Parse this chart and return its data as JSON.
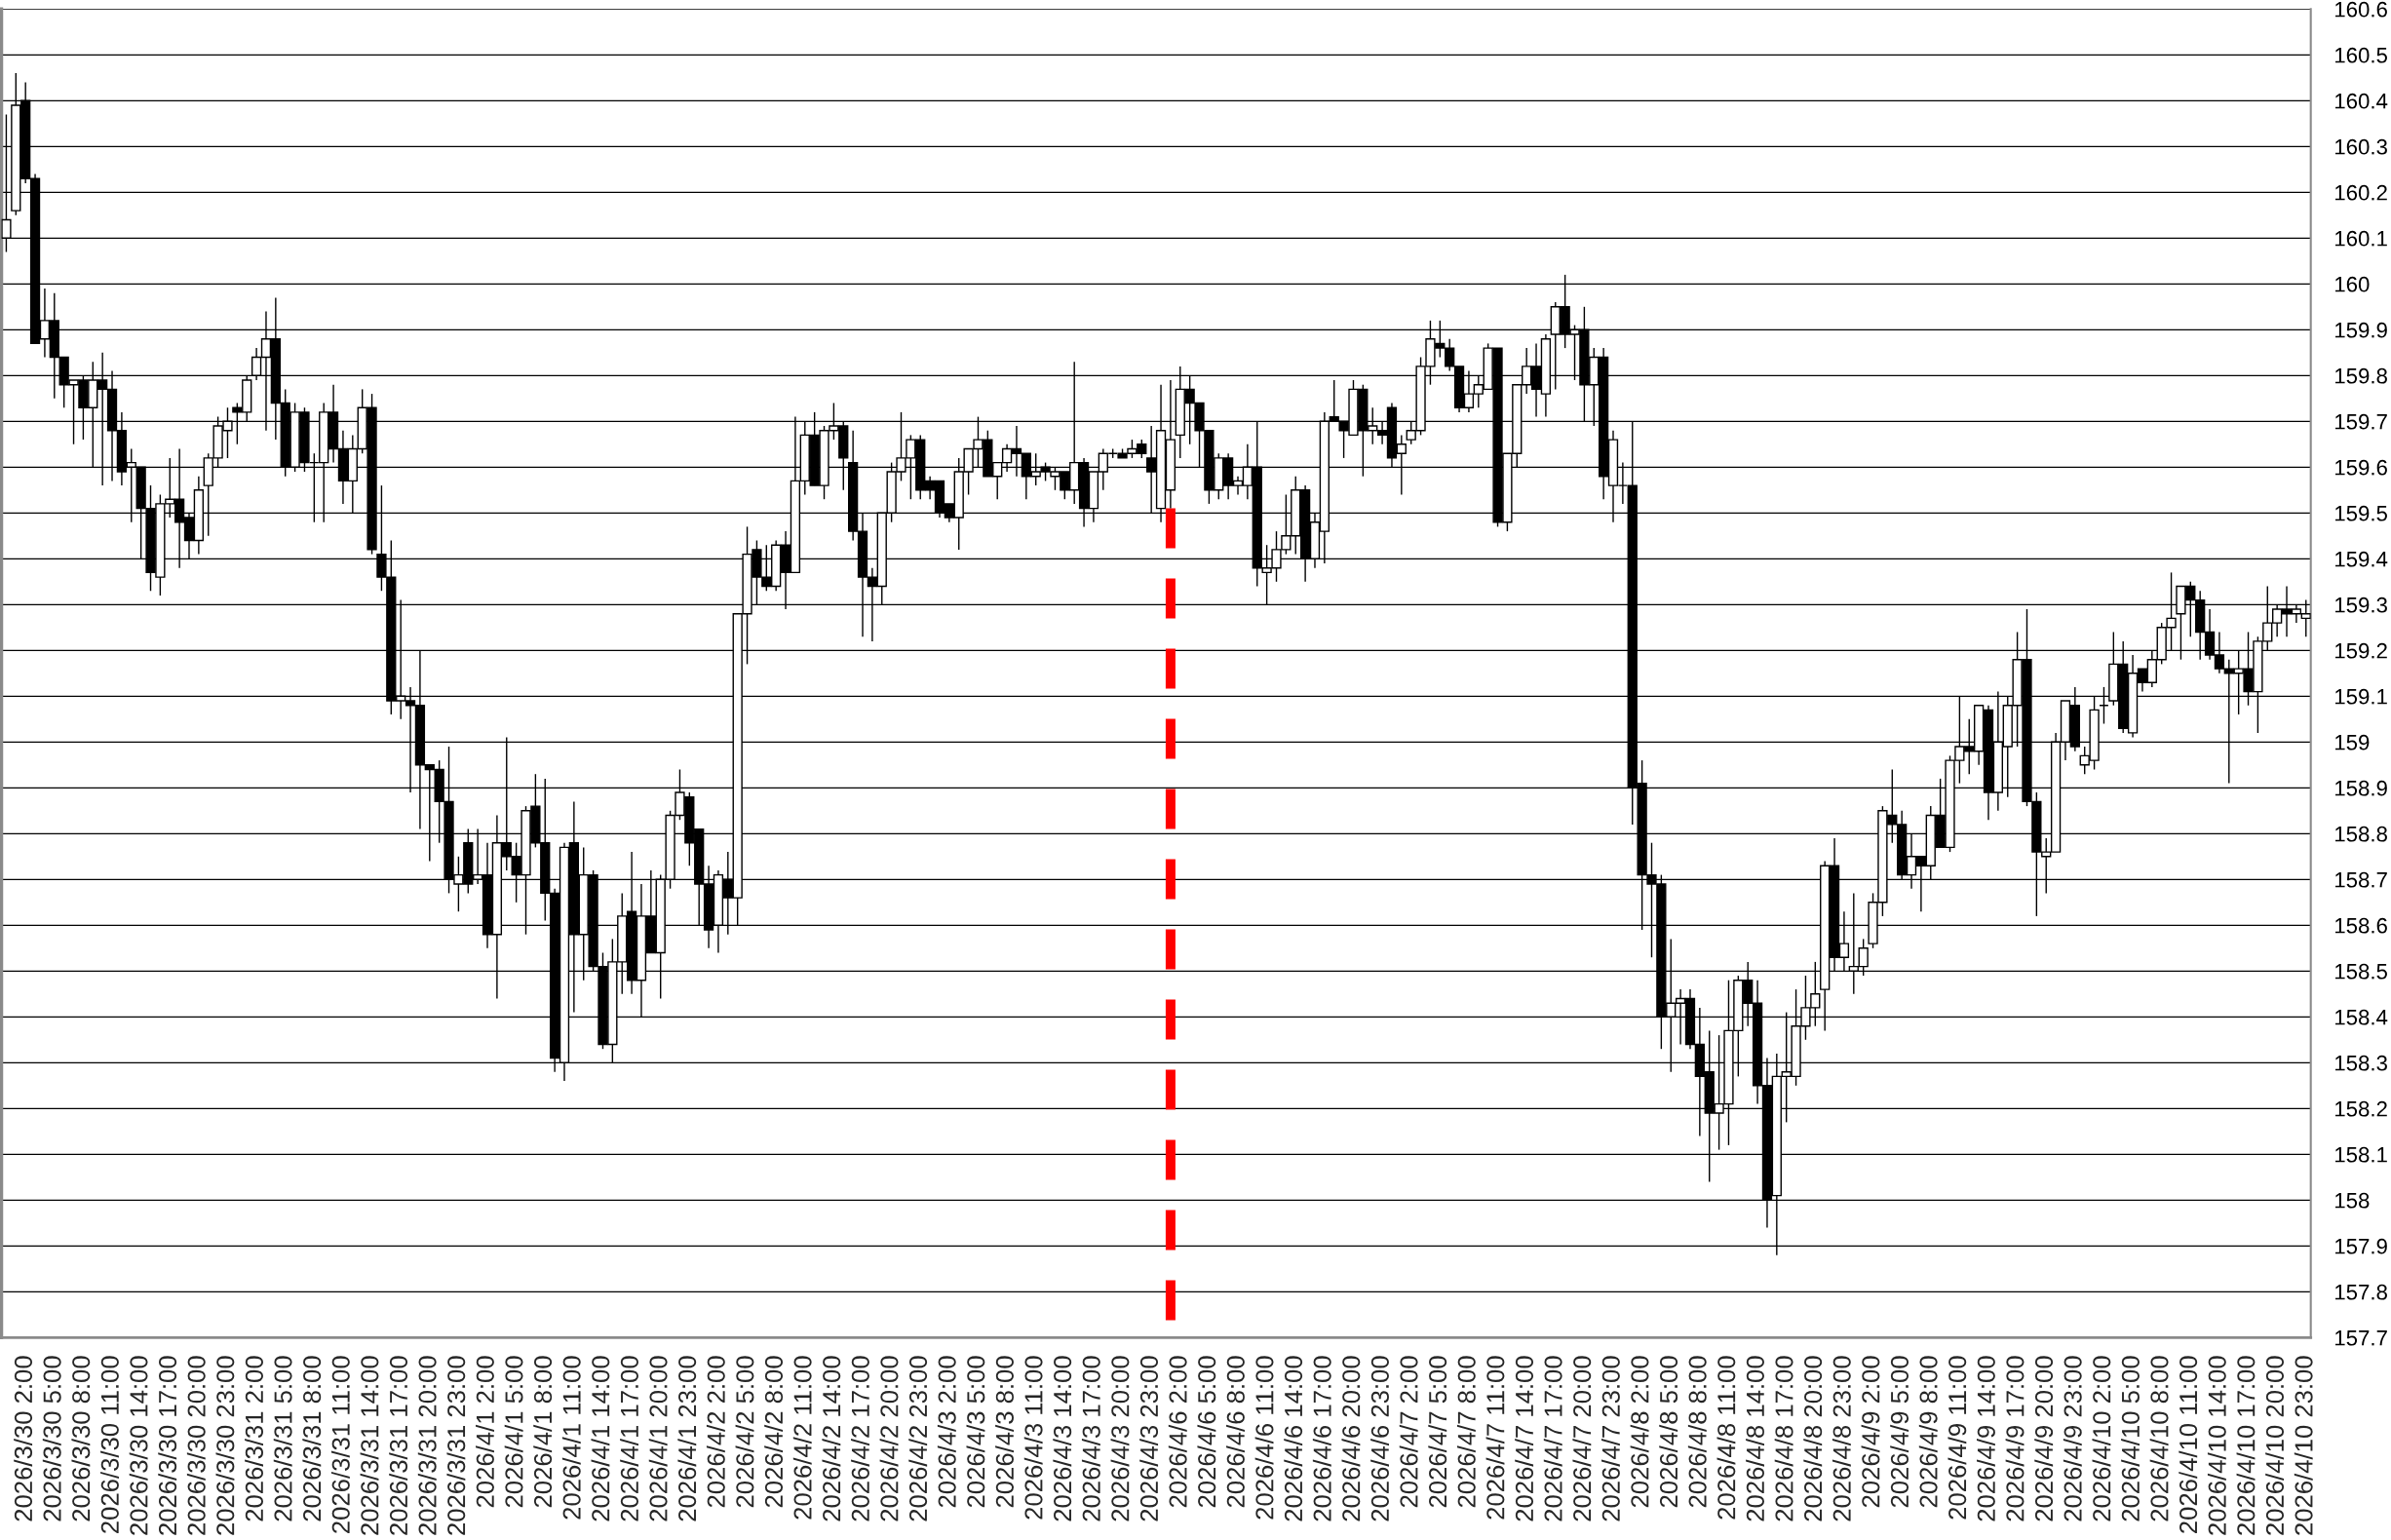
{
  "chart_data": {
    "type": "candlestick",
    "categories": [
      null,
      null,
      "2026/3/30 2:00",
      null,
      null,
      "2026/3/30 5:00",
      null,
      null,
      "2026/3/30 8:00",
      null,
      null,
      "2026/3/30 11:00",
      null,
      null,
      "2026/3/30 14:00",
      null,
      null,
      "2026/3/30 17:00",
      null,
      null,
      "2026/3/30 20:00",
      null,
      null,
      "2026/3/30 23:00",
      null,
      null,
      "2026/3/31 2:00",
      null,
      null,
      "2026/3/31 5:00",
      null,
      null,
      "2026/3/31 8:00",
      null,
      null,
      "2026/3/31 11:00",
      null,
      null,
      "2026/3/31 14:00",
      null,
      null,
      "2026/3/31 17:00",
      null,
      null,
      "2026/3/31 20:00",
      null,
      null,
      "2026/3/31 23:00",
      null,
      null,
      "2026/4/1 2:00",
      null,
      null,
      "2026/4/1 5:00",
      null,
      null,
      "2026/4/1 8:00",
      null,
      null,
      "2026/4/1 11:00",
      null,
      null,
      "2026/4/1 14:00",
      null,
      null,
      "2026/4/1 17:00",
      null,
      null,
      "2026/4/1 20:00",
      null,
      null,
      "2026/4/1 23:00",
      null,
      null,
      "2026/4/2 2:00",
      null,
      null,
      "2026/4/2 5:00",
      null,
      null,
      "2026/4/2 8:00",
      null,
      null,
      "2026/4/2 11:00",
      null,
      null,
      "2026/4/2 14:00",
      null,
      null,
      "2026/4/2 17:00",
      null,
      null,
      "2026/4/2 20:00",
      null,
      null,
      "2026/4/2 23:00",
      null,
      null,
      "2026/4/3 2:00",
      null,
      null,
      "2026/4/3 5:00",
      null,
      null,
      "2026/4/3 8:00",
      null,
      null,
      "2026/4/3 11:00",
      null,
      null,
      "2026/4/3 14:00",
      null,
      null,
      "2026/4/3 17:00",
      null,
      null,
      "2026/4/3 20:00",
      null,
      null,
      "2026/4/3 23:00",
      null,
      null,
      "2026/4/6 2:00",
      null,
      null,
      "2026/4/6 5:00",
      null,
      null,
      "2026/4/6 8:00",
      null,
      null,
      "2026/4/6 11:00",
      null,
      null,
      "2026/4/6 14:00",
      null,
      null,
      "2026/4/6 17:00",
      null,
      null,
      "2026/4/6 20:00",
      null,
      null,
      "2026/4/6 23:00",
      null,
      null,
      "2026/4/7 2:00",
      null,
      null,
      "2026/4/7 5:00",
      null,
      null,
      "2026/4/7 8:00",
      null,
      null,
      "2026/4/7 11:00",
      null,
      null,
      "2026/4/7 14:00",
      null,
      null,
      "2026/4/7 17:00",
      null,
      null,
      "2026/4/7 20:00",
      null,
      null,
      "2026/4/7 23:00",
      null,
      null,
      "2026/4/8 2:00",
      null,
      null,
      "2026/4/8 5:00",
      null,
      null,
      "2026/4/8 8:00",
      null,
      null,
      "2026/4/8 11:00",
      null,
      null,
      "2026/4/8 14:00",
      null,
      null,
      "2026/4/8 17:00",
      null,
      null,
      "2026/4/8 20:00",
      null,
      null,
      "2026/4/8 23:00",
      null,
      null,
      "2026/4/9 2:00",
      null,
      null,
      "2026/4/9 5:00",
      null,
      null,
      "2026/4/9 8:00",
      null,
      null,
      "2026/4/9 11:00",
      null,
      null,
      "2026/4/9 14:00",
      null,
      null,
      "2026/4/9 17:00",
      null,
      null,
      "2026/4/9 20:00",
      null,
      null,
      "2026/4/9 23:00",
      null,
      null,
      "2026/4/10 2:00",
      null,
      null,
      "2026/4/10 5:00",
      null,
      null,
      "2026/4/10 8:00",
      null,
      null,
      "2026/4/10 11:00",
      null,
      null,
      "2026/4/10 14:00",
      null,
      null,
      "2026/4/10 17:00",
      null,
      null,
      "2026/4/10 20:00",
      null,
      null,
      "2026/4/10 23:00"
    ],
    "ohlc": [
      [
        160.1,
        160.37,
        160.07,
        160.14
      ],
      [
        160.16,
        160.46,
        160.15,
        160.39
      ],
      [
        160.4,
        160.44,
        160.22,
        160.23
      ],
      [
        160.23,
        160.24,
        159.87,
        159.87
      ],
      [
        159.88,
        159.99,
        159.84,
        159.92
      ],
      [
        159.92,
        159.98,
        159.75,
        159.84
      ],
      [
        159.84,
        159.84,
        159.73,
        159.78
      ],
      [
        159.78,
        159.79,
        159.65,
        159.79
      ],
      [
        159.79,
        159.8,
        159.66,
        159.73
      ],
      [
        159.73,
        159.83,
        159.6,
        159.79
      ],
      [
        159.79,
        159.85,
        159.56,
        159.77
      ],
      [
        159.77,
        159.81,
        159.57,
        159.68
      ],
      [
        159.68,
        159.72,
        159.56,
        159.59
      ],
      [
        159.6,
        159.64,
        159.48,
        159.61
      ],
      [
        159.6,
        159.6,
        159.4,
        159.51
      ],
      [
        159.51,
        159.56,
        159.33,
        159.37
      ],
      [
        159.36,
        159.54,
        159.32,
        159.52
      ],
      [
        159.52,
        159.62,
        159.49,
        159.53
      ],
      [
        159.53,
        159.64,
        159.38,
        159.48
      ],
      [
        159.49,
        159.5,
        159.4,
        159.44
      ],
      [
        159.44,
        159.58,
        159.41,
        159.55
      ],
      [
        159.56,
        159.63,
        159.45,
        159.62
      ],
      [
        159.62,
        159.71,
        159.6,
        159.69
      ],
      [
        159.68,
        159.73,
        159.62,
        159.7
      ],
      [
        159.73,
        159.74,
        159.65,
        159.72
      ],
      [
        159.72,
        159.8,
        159.7,
        159.79
      ],
      [
        159.8,
        159.86,
        159.79,
        159.84
      ],
      [
        159.84,
        159.94,
        159.68,
        159.88
      ],
      [
        159.88,
        159.97,
        159.66,
        159.74
      ],
      [
        159.74,
        159.77,
        159.58,
        159.6
      ],
      [
        159.6,
        159.74,
        159.59,
        159.72
      ],
      [
        159.72,
        159.73,
        159.59,
        159.61
      ],
      [
        159.61,
        159.63,
        159.48,
        159.61
      ],
      [
        159.61,
        159.74,
        159.48,
        159.72
      ],
      [
        159.72,
        159.78,
        159.61,
        159.64
      ],
      [
        159.64,
        159.68,
        159.52,
        159.57
      ],
      [
        159.57,
        159.67,
        159.5,
        159.64
      ],
      [
        159.64,
        159.77,
        159.63,
        159.73
      ],
      [
        159.73,
        159.76,
        159.41,
        159.42
      ],
      [
        159.41,
        159.56,
        159.33,
        159.36
      ],
      [
        159.36,
        159.44,
        159.06,
        159.09
      ],
      [
        159.09,
        159.31,
        159.05,
        159.1
      ],
      [
        159.09,
        159.12,
        158.89,
        159.08
      ],
      [
        159.08,
        159.2,
        158.81,
        158.95
      ],
      [
        158.95,
        158.95,
        158.74,
        158.94
      ],
      [
        158.94,
        158.96,
        158.78,
        158.87
      ],
      [
        158.87,
        158.99,
        158.67,
        158.7
      ],
      [
        158.69,
        158.75,
        158.63,
        158.71
      ],
      [
        158.78,
        158.81,
        158.67,
        158.69
      ],
      [
        158.7,
        158.81,
        158.69,
        158.71
      ],
      [
        158.71,
        158.78,
        158.55,
        158.58
      ],
      [
        158.58,
        158.84,
        158.44,
        158.78
      ],
      [
        158.78,
        159.01,
        158.72,
        158.75
      ],
      [
        158.75,
        158.78,
        158.65,
        158.71
      ],
      [
        158.71,
        158.86,
        158.58,
        158.85
      ],
      [
        158.86,
        158.93,
        158.77,
        158.78
      ],
      [
        158.78,
        158.92,
        158.61,
        158.67
      ],
      [
        158.67,
        158.68,
        158.28,
        158.31
      ],
      [
        158.3,
        158.78,
        158.26,
        158.77
      ],
      [
        158.78,
        158.87,
        158.41,
        158.58
      ],
      [
        158.58,
        158.77,
        158.48,
        158.71
      ],
      [
        158.71,
        158.72,
        158.5,
        158.51
      ],
      [
        158.51,
        158.54,
        158.33,
        158.34
      ],
      [
        158.34,
        158.57,
        158.3,
        158.52
      ],
      [
        158.52,
        158.67,
        158.45,
        158.62
      ],
      [
        158.63,
        158.76,
        158.45,
        158.48
      ],
      [
        158.48,
        158.69,
        158.4,
        158.62
      ],
      [
        158.62,
        158.72,
        158.54,
        158.54
      ],
      [
        158.54,
        158.71,
        158.44,
        158.7
      ],
      [
        158.7,
        158.85,
        158.68,
        158.84
      ],
      [
        158.84,
        158.94,
        158.83,
        158.89
      ],
      [
        158.88,
        158.89,
        158.73,
        158.78
      ],
      [
        158.81,
        158.81,
        158.6,
        158.69
      ],
      [
        158.69,
        158.73,
        158.55,
        158.59
      ],
      [
        158.6,
        158.72,
        158.54,
        158.71
      ],
      [
        158.7,
        158.76,
        158.58,
        158.66
      ],
      [
        158.66,
        159.28,
        158.6,
        159.28
      ],
      [
        159.28,
        159.47,
        159.17,
        159.41
      ],
      [
        159.42,
        159.44,
        159.3,
        159.36
      ],
      [
        159.36,
        159.43,
        159.33,
        159.34
      ],
      [
        159.34,
        159.44,
        159.33,
        159.43
      ],
      [
        159.43,
        159.46,
        159.29,
        159.37
      ],
      [
        159.37,
        159.71,
        159.37,
        159.57
      ],
      [
        159.57,
        159.7,
        159.54,
        159.67
      ],
      [
        159.67,
        159.72,
        159.56,
        159.56
      ],
      [
        159.56,
        159.69,
        159.53,
        159.68
      ],
      [
        159.68,
        159.74,
        159.66,
        159.69
      ],
      [
        159.69,
        159.7,
        159.55,
        159.62
      ],
      [
        159.61,
        159.68,
        159.44,
        159.46
      ],
      [
        159.46,
        159.5,
        159.23,
        159.36
      ],
      [
        159.36,
        159.38,
        159.22,
        159.34
      ],
      [
        159.34,
        159.5,
        159.3,
        159.5
      ],
      [
        159.5,
        159.61,
        159.48,
        159.59
      ],
      [
        159.59,
        159.72,
        159.57,
        159.62
      ],
      [
        159.62,
        159.67,
        159.53,
        159.66
      ],
      [
        159.66,
        159.67,
        159.53,
        159.55
      ],
      [
        159.57,
        159.58,
        159.53,
        159.55
      ],
      [
        159.57,
        159.57,
        159.49,
        159.5
      ],
      [
        159.52,
        159.52,
        159.48,
        159.49
      ],
      [
        159.49,
        159.62,
        159.42,
        159.59
      ],
      [
        159.59,
        159.64,
        159.54,
        159.64
      ],
      [
        159.64,
        159.71,
        159.6,
        159.66
      ],
      [
        159.66,
        159.68,
        159.58,
        159.58
      ],
      [
        159.58,
        159.61,
        159.53,
        159.61
      ],
      [
        159.61,
        159.65,
        159.59,
        159.64
      ],
      [
        159.64,
        159.69,
        159.58,
        159.63
      ],
      [
        159.63,
        159.63,
        159.53,
        159.58
      ],
      [
        159.58,
        159.63,
        159.56,
        159.59
      ],
      [
        159.6,
        159.61,
        159.57,
        159.59
      ],
      [
        159.58,
        159.6,
        159.55,
        159.59
      ],
      [
        159.59,
        159.59,
        159.53,
        159.55
      ],
      [
        159.55,
        159.83,
        159.52,
        159.61
      ],
      [
        159.61,
        159.62,
        159.47,
        159.51
      ],
      [
        159.51,
        159.59,
        159.48,
        159.59
      ],
      [
        159.59,
        159.64,
        159.55,
        159.63
      ],
      [
        159.63,
        159.64,
        159.62,
        159.63
      ],
      [
        159.63,
        159.64,
        159.62,
        159.62
      ],
      [
        159.63,
        159.66,
        159.62,
        159.64
      ],
      [
        159.65,
        159.66,
        159.62,
        159.63
      ],
      [
        159.62,
        159.69,
        159.5,
        159.59
      ],
      [
        159.51,
        159.78,
        159.48,
        159.68
      ],
      [
        159.55,
        159.79,
        159.51,
        159.66
      ],
      [
        159.67,
        159.82,
        159.62,
        159.77
      ],
      [
        159.77,
        159.8,
        159.65,
        159.74
      ],
      [
        159.74,
        159.74,
        159.6,
        159.68
      ],
      [
        159.68,
        159.68,
        159.52,
        159.55
      ],
      [
        159.55,
        159.63,
        159.53,
        159.62
      ],
      [
        159.62,
        159.63,
        159.53,
        159.56
      ],
      [
        159.56,
        159.58,
        159.54,
        159.57
      ],
      [
        159.56,
        159.65,
        159.53,
        159.6
      ],
      [
        159.6,
        159.7,
        159.34,
        159.38
      ],
      [
        159.37,
        159.43,
        159.3,
        159.38
      ],
      [
        159.38,
        159.46,
        159.35,
        159.42
      ],
      [
        159.42,
        159.54,
        159.41,
        159.45
      ],
      [
        159.45,
        159.58,
        159.41,
        159.55
      ],
      [
        159.55,
        159.56,
        159.35,
        159.4
      ],
      [
        159.4,
        159.5,
        159.38,
        159.48
      ],
      [
        159.46,
        159.72,
        159.39,
        159.7
      ],
      [
        159.71,
        159.79,
        159.7,
        159.7
      ],
      [
        159.7,
        159.7,
        159.62,
        159.68
      ],
      [
        159.67,
        159.79,
        159.67,
        159.77
      ],
      [
        159.77,
        159.78,
        159.58,
        159.68
      ],
      [
        159.68,
        159.73,
        159.65,
        159.69
      ],
      [
        159.68,
        159.7,
        159.65,
        159.67
      ],
      [
        159.73,
        159.74,
        159.6,
        159.62
      ],
      [
        159.63,
        159.67,
        159.54,
        159.65
      ],
      [
        159.66,
        159.7,
        159.65,
        159.68
      ],
      [
        159.68,
        159.84,
        159.67,
        159.82
      ],
      [
        159.82,
        159.92,
        159.78,
        159.88
      ],
      [
        159.87,
        159.92,
        159.84,
        159.86
      ],
      [
        159.86,
        159.88,
        159.81,
        159.82
      ],
      [
        159.82,
        159.82,
        159.72,
        159.73
      ],
      [
        159.73,
        159.81,
        159.72,
        159.76
      ],
      [
        159.76,
        159.8,
        159.73,
        159.78
      ],
      [
        159.77,
        159.87,
        159.77,
        159.86
      ],
      [
        159.86,
        159.86,
        159.47,
        159.48
      ],
      [
        159.48,
        159.63,
        159.46,
        159.63
      ],
      [
        159.63,
        159.78,
        159.6,
        159.78
      ],
      [
        159.78,
        159.86,
        159.76,
        159.82
      ],
      [
        159.82,
        159.87,
        159.71,
        159.77
      ],
      [
        159.76,
        159.89,
        159.71,
        159.88
      ],
      [
        159.89,
        159.96,
        159.77,
        159.95
      ],
      [
        159.95,
        160.02,
        159.86,
        159.89
      ],
      [
        159.89,
        159.91,
        159.79,
        159.9
      ],
      [
        159.9,
        159.95,
        159.7,
        159.78
      ],
      [
        159.78,
        159.86,
        159.69,
        159.84
      ],
      [
        159.84,
        159.86,
        159.53,
        159.58
      ],
      [
        159.56,
        159.68,
        159.48,
        159.66
      ],
      [
        159.56,
        159.61,
        159.52,
        159.56
      ],
      [
        159.56,
        159.7,
        158.82,
        158.9
      ],
      [
        158.91,
        158.96,
        158.59,
        158.71
      ],
      [
        158.71,
        158.78,
        158.53,
        158.69
      ],
      [
        158.69,
        158.71,
        158.33,
        158.4
      ],
      [
        158.4,
        158.57,
        158.28,
        158.43
      ],
      [
        158.43,
        158.46,
        158.34,
        158.44
      ],
      [
        158.44,
        158.46,
        158.33,
        158.34
      ],
      [
        158.34,
        158.42,
        158.14,
        158.27
      ],
      [
        158.28,
        158.37,
        158.04,
        158.19
      ],
      [
        158.19,
        158.36,
        158.11,
        158.21
      ],
      [
        158.21,
        158.48,
        158.12,
        158.37
      ],
      [
        158.37,
        158.49,
        158.27,
        158.48
      ],
      [
        158.48,
        158.52,
        158.38,
        158.43
      ],
      [
        158.43,
        158.48,
        158.21,
        158.25
      ],
      [
        158.25,
        158.31,
        157.94,
        158.0
      ],
      [
        158.01,
        158.32,
        157.88,
        158.27
      ],
      [
        158.27,
        158.41,
        158.17,
        158.28
      ],
      [
        158.27,
        158.46,
        158.25,
        158.38
      ],
      [
        158.38,
        158.49,
        158.35,
        158.42
      ],
      [
        158.42,
        158.52,
        158.38,
        158.45
      ],
      [
        158.46,
        158.74,
        158.37,
        158.73
      ],
      [
        158.73,
        158.79,
        158.5,
        158.53
      ],
      [
        158.53,
        158.63,
        158.5,
        158.56
      ],
      [
        158.5,
        158.67,
        158.45,
        158.51
      ],
      [
        158.51,
        158.57,
        158.49,
        158.55
      ],
      [
        158.56,
        158.67,
        158.55,
        158.65
      ],
      [
        158.65,
        158.86,
        158.62,
        158.85
      ],
      [
        158.84,
        158.94,
        158.78,
        158.82
      ],
      [
        158.82,
        158.85,
        158.7,
        158.71
      ],
      [
        158.71,
        158.8,
        158.68,
        158.75
      ],
      [
        158.75,
        158.75,
        158.63,
        158.73
      ],
      [
        158.73,
        158.86,
        158.7,
        158.84
      ],
      [
        158.84,
        158.92,
        158.77,
        158.77
      ],
      [
        158.77,
        158.97,
        158.76,
        158.96
      ],
      [
        158.96,
        159.1,
        158.91,
        158.99
      ],
      [
        158.99,
        159.05,
        158.93,
        158.98
      ],
      [
        158.98,
        159.08,
        158.95,
        159.08
      ],
      [
        159.07,
        159.08,
        158.83,
        158.89
      ],
      [
        158.89,
        159.11,
        158.85,
        159.0
      ],
      [
        158.99,
        159.1,
        158.88,
        159.08
      ],
      [
        159.08,
        159.24,
        158.99,
        159.18
      ],
      [
        159.18,
        159.29,
        158.86,
        158.87
      ],
      [
        158.87,
        158.89,
        158.62,
        158.76
      ],
      [
        158.75,
        158.79,
        158.67,
        158.76
      ],
      [
        158.76,
        159.02,
        158.76,
        159.0
      ],
      [
        159.0,
        159.09,
        158.96,
        159.09
      ],
      [
        159.08,
        159.12,
        158.98,
        158.99
      ],
      [
        158.95,
        158.99,
        158.93,
        158.97
      ],
      [
        158.96,
        159.1,
        158.94,
        159.07
      ],
      [
        159.08,
        159.12,
        159.04,
        159.08
      ],
      [
        159.09,
        159.24,
        159.08,
        159.17
      ],
      [
        159.17,
        159.22,
        159.02,
        159.03
      ],
      [
        159.02,
        159.19,
        159.01,
        159.15
      ],
      [
        159.16,
        159.16,
        159.11,
        159.13
      ],
      [
        159.13,
        159.2,
        159.12,
        159.18
      ],
      [
        159.18,
        159.26,
        159.17,
        159.25
      ],
      [
        159.25,
        159.37,
        159.2,
        159.27
      ],
      [
        159.28,
        159.34,
        159.18,
        159.34
      ],
      [
        159.34,
        159.35,
        159.23,
        159.31
      ],
      [
        159.31,
        159.33,
        159.18,
        159.24
      ],
      [
        159.24,
        159.29,
        159.18,
        159.19
      ],
      [
        159.19,
        159.24,
        159.15,
        159.16
      ],
      [
        159.16,
        159.18,
        158.91,
        159.15
      ],
      [
        159.15,
        159.2,
        159.06,
        159.16
      ],
      [
        159.16,
        159.24,
        159.08,
        159.11
      ],
      [
        159.11,
        159.23,
        159.02,
        159.22
      ],
      [
        159.22,
        159.34,
        159.2,
        159.26
      ],
      [
        159.26,
        159.3,
        159.23,
        159.29
      ],
      [
        159.29,
        159.34,
        159.23,
        159.28
      ],
      [
        159.28,
        159.3,
        159.26,
        159.29
      ],
      [
        159.27,
        159.31,
        159.23,
        159.28
      ]
    ],
    "ylim": [
      157.7,
      160.6
    ],
    "yticks": [
      157.7,
      157.8,
      157.9,
      158,
      158.1,
      158.2,
      158.3,
      158.4,
      158.5,
      158.6,
      158.7,
      158.8,
      158.9,
      159,
      159.1,
      159.2,
      159.3,
      159.4,
      159.5,
      159.6,
      159.7,
      159.8,
      159.9,
      160,
      160.1,
      160.2,
      160.3,
      160.4,
      160.5,
      160.6
    ],
    "grid": "y"
  }
}
